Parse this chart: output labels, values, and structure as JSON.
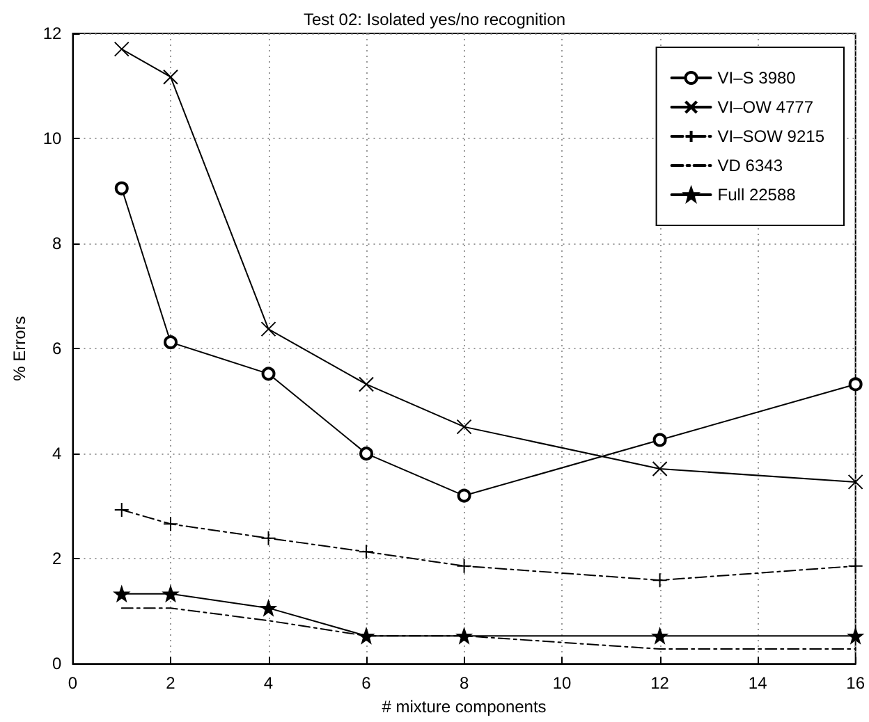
{
  "chart_data": {
    "type": "line",
    "title": "Test 02: Isolated yes/no recognition",
    "xlabel": "# mixture components",
    "ylabel": "% Errors",
    "x": [
      1,
      2,
      4,
      6,
      8,
      12,
      16
    ],
    "series": [
      {
        "name": "VI–S 3980",
        "color": "#000000",
        "marker": "circle",
        "line_style": "solid",
        "values": [
          9.05,
          6.12,
          5.52,
          4.0,
          3.2,
          4.26,
          5.32
        ]
      },
      {
        "name": "VI–OW 4777",
        "color": "#000000",
        "marker": "x",
        "line_style": "solid",
        "values": [
          11.7,
          11.17,
          6.37,
          5.32,
          4.51,
          3.71,
          3.46
        ]
      },
      {
        "name": "VI–SOW 9215",
        "color": "#000000",
        "marker": "cross",
        "line_style": "dashed",
        "values": [
          2.93,
          2.66,
          2.39,
          2.13,
          1.86,
          1.59,
          1.86
        ]
      },
      {
        "name": "VD 6343",
        "color": "#000000",
        "marker": "none",
        "line_style": "dashed",
        "values": [
          1.06,
          1.06,
          0.82,
          0.53,
          0.53,
          0.28,
          0.28
        ]
      },
      {
        "name": "Full 22588",
        "color": "#000000",
        "marker": "star",
        "line_style": "solid",
        "values": [
          1.33,
          1.33,
          1.06,
          0.53,
          0.53,
          0.53,
          0.53
        ]
      }
    ],
    "xlim": [
      0,
      16
    ],
    "xticks": [
      0,
      2,
      4,
      6,
      8,
      10,
      12,
      14,
      16
    ],
    "ylim": [
      0,
      12
    ],
    "yticks": [
      0,
      2,
      4,
      6,
      8,
      10,
      12
    ],
    "grid": true,
    "legend": "top right"
  }
}
